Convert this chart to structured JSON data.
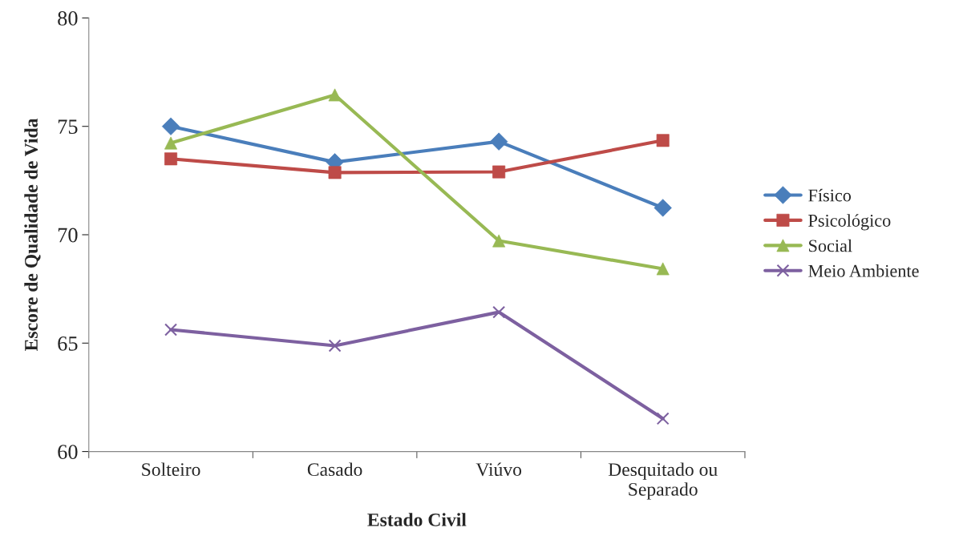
{
  "chart_data": {
    "type": "line",
    "xlabel": "Estado Civil",
    "ylabel": "Escore de Qualidade de Vida",
    "categories": [
      "Solteiro",
      "Casado",
      "Viúvo",
      "Desquitado ou\nSeparado"
    ],
    "series": [
      {
        "name": "Físico",
        "color": "#4a7ebb",
        "marker": "diamond",
        "values": [
          75.0,
          73.35,
          74.3,
          71.24
        ]
      },
      {
        "name": "Psicológico",
        "color": "#be4b48",
        "marker": "square",
        "values": [
          73.5,
          72.87,
          72.9,
          74.35
        ]
      },
      {
        "name": "Social",
        "color": "#98b954",
        "marker": "triangle",
        "values": [
          74.23,
          76.45,
          69.72,
          68.43
        ]
      },
      {
        "name": "Meio Ambiente",
        "color": "#7d60a0",
        "marker": "cross",
        "values": [
          65.62,
          64.88,
          66.43,
          61.52
        ]
      }
    ],
    "ylim": [
      60,
      80
    ],
    "yticks": [
      60,
      65,
      70,
      75,
      80
    ],
    "grid": false,
    "legend": "right",
    "line_style": "solid"
  }
}
